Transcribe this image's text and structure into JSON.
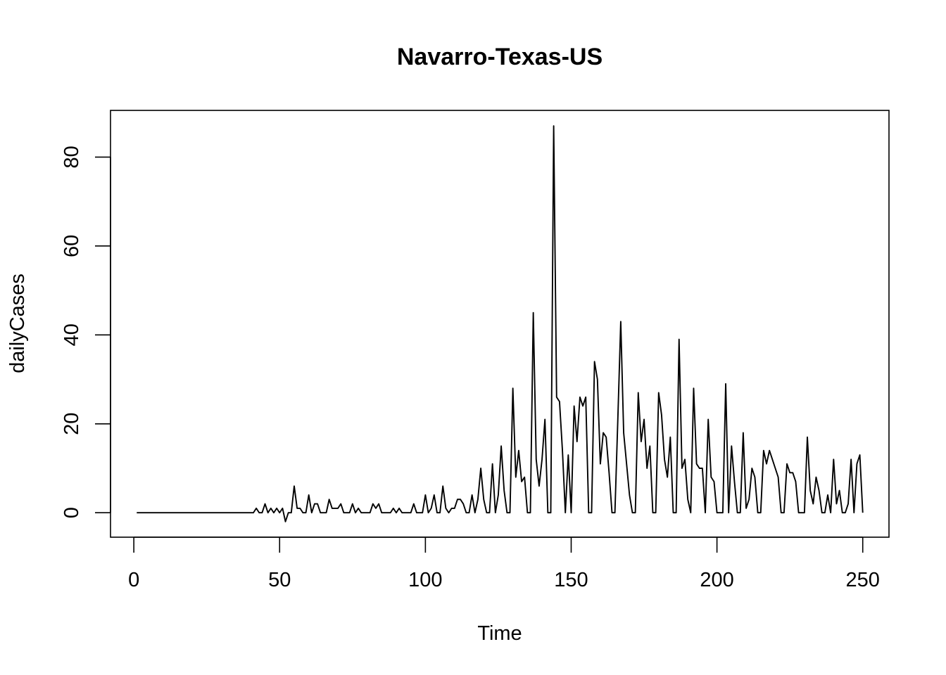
{
  "chart_data": {
    "type": "line",
    "title": "Navarro-Texas-US",
    "xlabel": "Time",
    "ylabel": "dailyCases",
    "xlim": [
      -8,
      259
    ],
    "ylim": [
      -5.5,
      90.5
    ],
    "x_ticks": [
      0,
      50,
      100,
      150,
      200,
      250
    ],
    "y_ticks": [
      0,
      20,
      40,
      60,
      80
    ],
    "x_tick_labels": [
      "0",
      "50",
      "100",
      "150",
      "200",
      "250"
    ],
    "y_tick_labels": [
      "0",
      "20",
      "40",
      "60",
      "80"
    ],
    "grid": false,
    "legend": "none",
    "line_color": "#000000",
    "x_start": 1,
    "values": [
      0,
      0,
      0,
      0,
      0,
      0,
      0,
      0,
      0,
      0,
      0,
      0,
      0,
      0,
      0,
      0,
      0,
      0,
      0,
      0,
      0,
      0,
      0,
      0,
      0,
      0,
      0,
      0,
      0,
      0,
      0,
      0,
      0,
      0,
      0,
      0,
      0,
      0,
      0,
      0,
      0,
      1,
      0,
      0,
      2,
      0,
      1,
      0,
      1,
      0,
      1,
      -2,
      0,
      0,
      6,
      1,
      1,
      0,
      0,
      4,
      0,
      2,
      2,
      0,
      0,
      0,
      3,
      1,
      1,
      1,
      2,
      0,
      0,
      0,
      2,
      0,
      1,
      0,
      0,
      0,
      0,
      2,
      1,
      2,
      0,
      0,
      0,
      0,
      1,
      0,
      1,
      0,
      0,
      0,
      0,
      2,
      0,
      0,
      0,
      4,
      0,
      1,
      4,
      0,
      0,
      6,
      1,
      0,
      1,
      1,
      3,
      3,
      2,
      0,
      0,
      4,
      0,
      3,
      10,
      3,
      0,
      0,
      11,
      0,
      4,
      15,
      5,
      0,
      0,
      28,
      8,
      14,
      7,
      8,
      0,
      0,
      45,
      12,
      6,
      12,
      21,
      0,
      0,
      87,
      26,
      25,
      14,
      0,
      13,
      0,
      24,
      16,
      26,
      24,
      26,
      0,
      0,
      34,
      30,
      11,
      18,
      17,
      9,
      0,
      0,
      21,
      43,
      18,
      11,
      4,
      0,
      0,
      27,
      16,
      21,
      10,
      15,
      0,
      0,
      27,
      22,
      12,
      8,
      17,
      0,
      0,
      39,
      10,
      12,
      3,
      0,
      28,
      11,
      10,
      10,
      0,
      21,
      8,
      7,
      0,
      0,
      0,
      29,
      0,
      15,
      7,
      0,
      0,
      18,
      1,
      3,
      10,
      8,
      0,
      0,
      14,
      11,
      14,
      12,
      10,
      8,
      0,
      0,
      11,
      9,
      9,
      7,
      0,
      0,
      0,
      17,
      5,
      2,
      8,
      5,
      0,
      0,
      4,
      0,
      12,
      2,
      5,
      0,
      0,
      2,
      12,
      0,
      11,
      13,
      0
    ]
  }
}
